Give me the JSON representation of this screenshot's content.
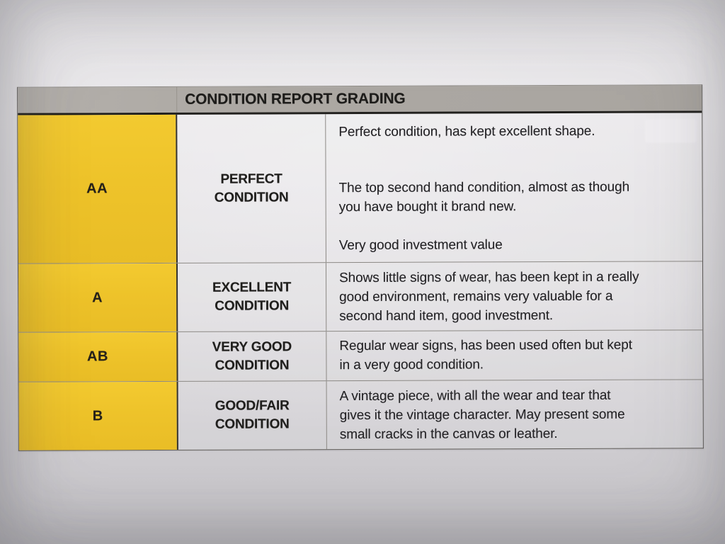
{
  "table": {
    "title": "CONDITION REPORT GRADING",
    "rows": [
      {
        "grade": "AA",
        "label": "PERFECT\nCONDITION",
        "paragraphs": [
          "Perfect condition, has kept excellent shape.",
          "The top second hand condition, almost as though\nyou have bought it brand new.",
          "Very good investment value"
        ]
      },
      {
        "grade": "A",
        "label": "EXCELLENT\nCONDITION",
        "paragraphs": [
          "Shows little signs of wear, has been kept in a really\ngood environment, remains very valuable for a\nsecond hand item, good investment."
        ]
      },
      {
        "grade": "AB",
        "label": "VERY GOOD\nCONDITION",
        "paragraphs": [
          "Regular wear signs, has been used often but kept\nin a very good condition."
        ]
      },
      {
        "grade": "B",
        "label": "GOOD/FAIR\nCONDITION",
        "paragraphs": [
          "A vintage piece, with all the wear and tear that\ngives it the vintage character. May present some\nsmall cracks in the canvas or leather."
        ]
      }
    ]
  },
  "colors": {
    "paper": "#DFDDE0",
    "header_gray": "#ACA8A3",
    "grade_yellow": "#EEC32A",
    "header_border_black": "#21201D",
    "grid_line_gray": "#8B8884",
    "text": "#232225"
  }
}
